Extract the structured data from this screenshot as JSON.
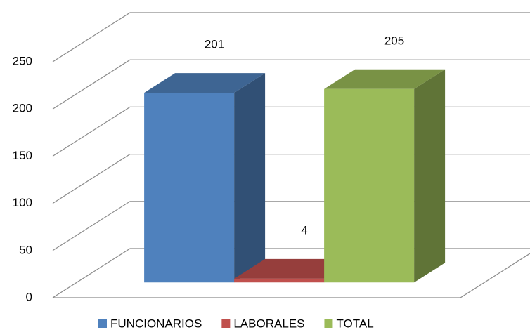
{
  "chart_data": {
    "type": "bar3d",
    "categories": [
      null
    ],
    "series": [
      {
        "name": "FUNCIONARIOS",
        "color": "#4f81bd",
        "values": [
          201
        ]
      },
      {
        "name": "LABORALES",
        "color": "#c0504d",
        "values": [
          4
        ]
      },
      {
        "name": "TOTAL",
        "color": "#9bbb59",
        "values": [
          205
        ]
      }
    ],
    "ylim": [
      0,
      250
    ],
    "yticks": [
      0,
      50,
      100,
      150,
      200,
      250
    ],
    "grid": true,
    "legend": "bottom"
  }
}
